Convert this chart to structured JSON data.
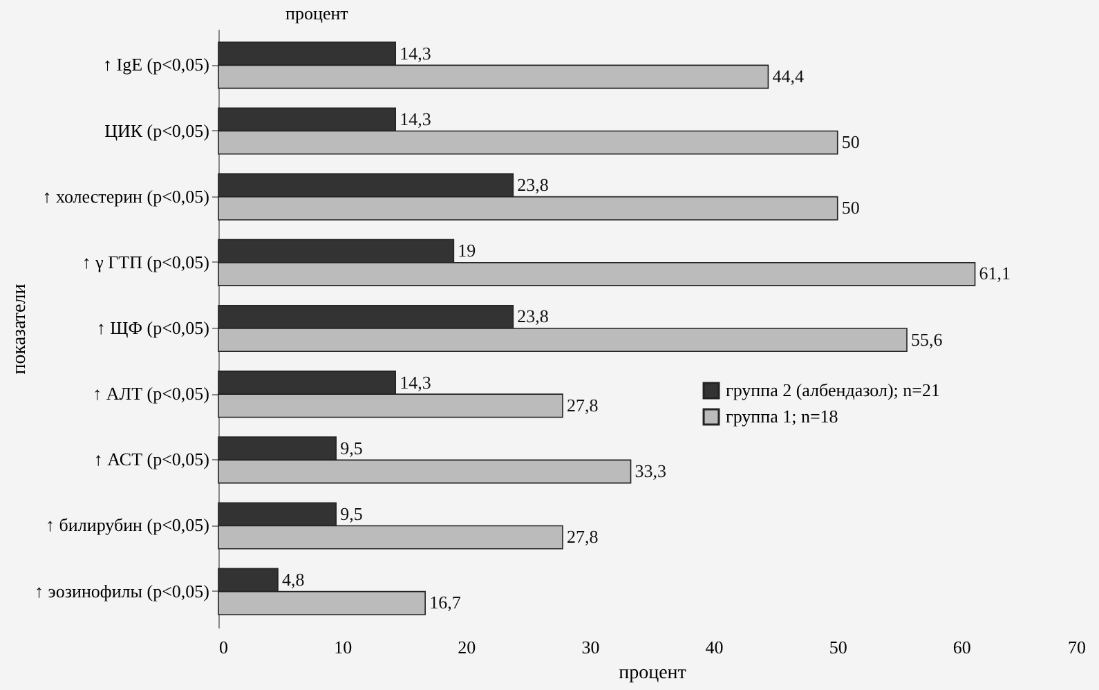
{
  "chart_data": {
    "type": "bar",
    "orientation": "horizontal",
    "xlabel": "процент",
    "ylabel": "показатели",
    "annotations": [
      "процент"
    ],
    "categories": [
      "↑ IgE  (p<0,05)",
      "ЦИК (p<0,05)",
      "↑ холестерин  (p<0,05)",
      "↑ γ ГТП  (p<0,05)",
      "↑ ЩФ  (p<0,05)",
      "↑ АЛТ  (p<0,05)",
      "↑ АСТ  (p<0,05)",
      "↑ билирубин  (p<0,05)",
      "↑ эозинофилы (p<0,05)"
    ],
    "series": [
      {
        "name": "группа 2 (албендазол); n=21",
        "color": "#333333",
        "values": [
          14.3,
          14.3,
          23.8,
          19,
          23.8,
          14.3,
          9.5,
          9.5,
          4.8
        ],
        "value_labels": [
          "14,3",
          "14,3",
          "23,8",
          "19",
          "23,8",
          "14,3",
          "9,5",
          "9,5",
          "4,8"
        ]
      },
      {
        "name": "группа 1; n=18",
        "color": "#bbbbbb",
        "values": [
          44.4,
          50,
          50,
          61.1,
          55.6,
          27.8,
          33.3,
          27.8,
          16.7
        ],
        "value_labels": [
          "44,4",
          "50",
          "50",
          "61,1",
          "55,6",
          "27,8",
          "33,3",
          "27,8",
          "16,7"
        ]
      }
    ],
    "xlim": [
      0,
      70
    ],
    "xticks": [
      0,
      10,
      20,
      30,
      40,
      50,
      60,
      70
    ],
    "legend": "right",
    "grid": false
  }
}
